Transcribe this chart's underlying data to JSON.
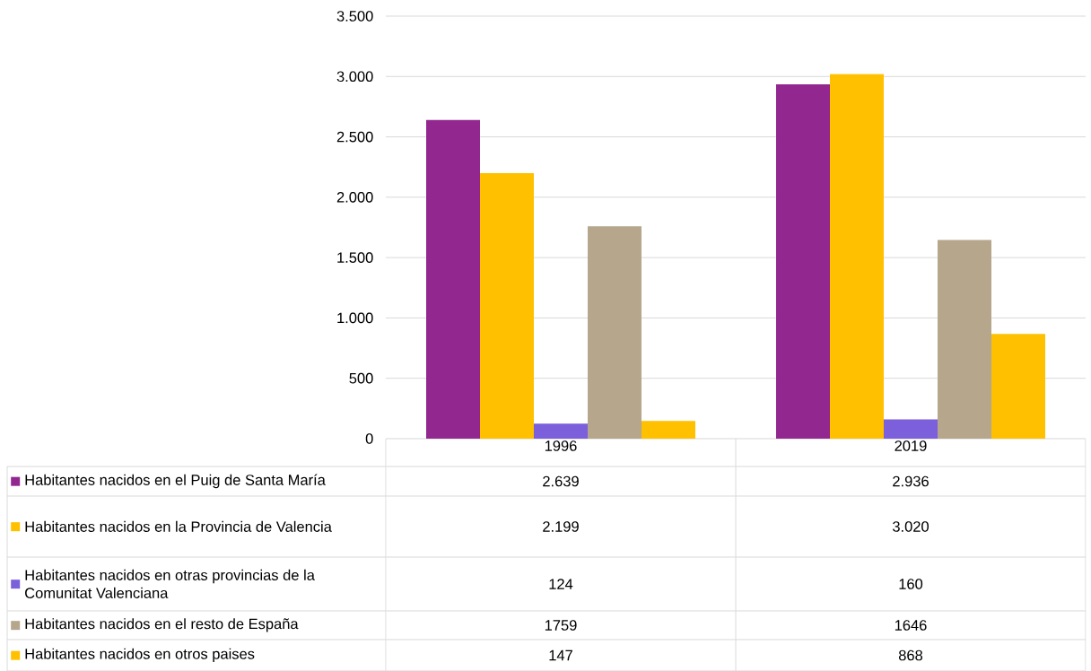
{
  "chart_data": {
    "type": "bar",
    "categories": [
      "1996",
      "2019"
    ],
    "series": [
      {
        "name": "Habitantes nacidos en el Puig de Santa María",
        "color": "#92278f",
        "values": [
          2639,
          2936
        ],
        "value_labels": [
          "2.639",
          "2.936"
        ]
      },
      {
        "name": "Habitantes nacidos en la Provincia de Valencia",
        "color": "#ffc000",
        "values": [
          2199,
          3020
        ],
        "value_labels": [
          "2.199",
          "3.020"
        ]
      },
      {
        "name": "Habitantes nacidos en otras provincias de la Comunitat Valenciana",
        "color": "#7b5fdb",
        "values": [
          124,
          160
        ],
        "value_labels": [
          "124",
          "160"
        ]
      },
      {
        "name": "Habitantes nacidos en el resto de España",
        "color": "#b5a68c",
        "values": [
          1759,
          1646
        ],
        "value_labels": [
          "1759",
          "1646"
        ]
      },
      {
        "name": "Habitantes nacidos en otros paises",
        "color": "#ffc000",
        "values": [
          147,
          868
        ],
        "value_labels": [
          "147",
          "868"
        ]
      }
    ],
    "ylim": [
      0,
      3500
    ],
    "yticks": [
      0,
      500,
      {
        "value": 1000,
        "label": "1.000"
      },
      {
        "value": 1500,
        "label": "1.500"
      },
      {
        "value": 2000,
        "label": "2.000"
      },
      {
        "value": 2500,
        "label": "2.500"
      },
      {
        "value": 3000,
        "label": "3.000"
      },
      {
        "value": 3500,
        "label": "3.500"
      }
    ],
    "grid": "y",
    "legend": "bottom"
  }
}
